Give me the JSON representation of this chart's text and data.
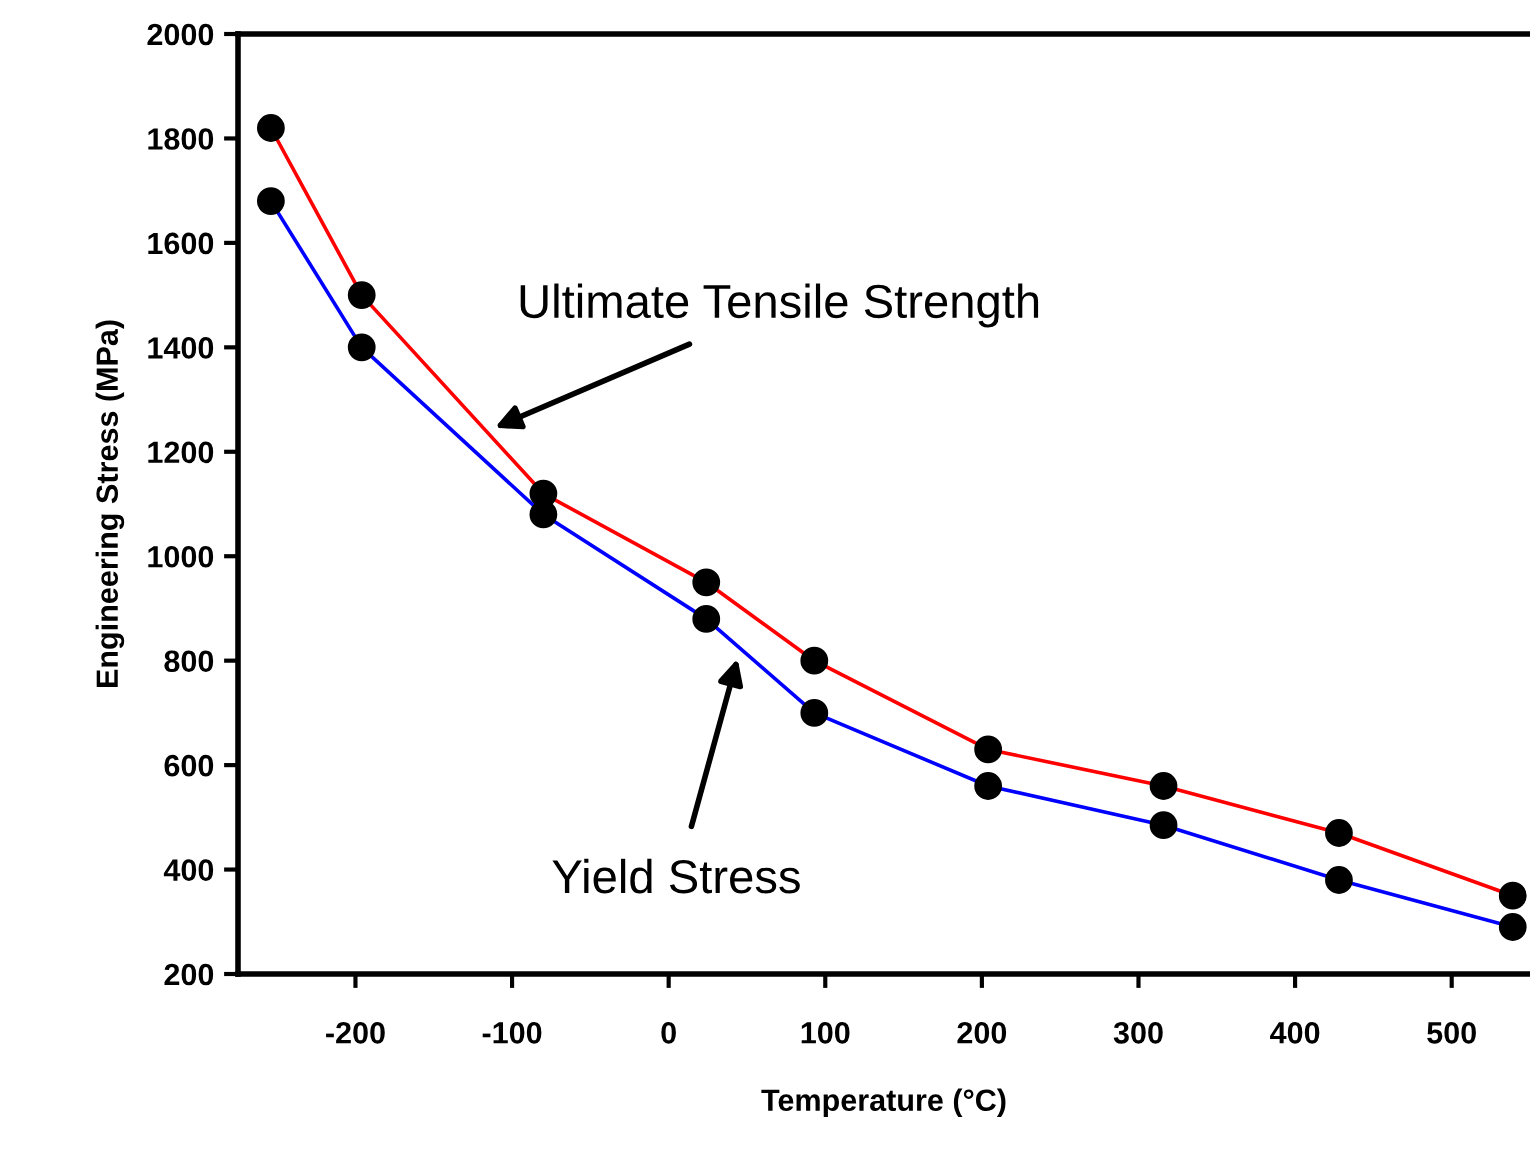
{
  "chart_data": {
    "type": "line",
    "xlabel": "Temperature (°C)",
    "ylabel": "Engineering Stress (MPa)",
    "x": [
      -254,
      -196,
      -80,
      24,
      93,
      204,
      316,
      428,
      539
    ],
    "series": [
      {
        "color": "#ff0000",
        "values": [
          1820,
          1500,
          1120,
          950,
          800,
          630,
          560,
          470,
          350
        ]
      },
      {
        "color": "#0000ff",
        "values": [
          1680,
          1400,
          1080,
          880,
          700,
          560,
          485,
          380,
          290
        ]
      }
    ],
    "xlim": [
      -275,
      550
    ],
    "xticks": [
      -200,
      -100,
      0,
      100,
      200,
      300,
      400,
      500
    ],
    "ylim": [
      200,
      2000
    ],
    "yticks": [
      200,
      400,
      600,
      800,
      1000,
      1200,
      1400,
      1600,
      1800,
      2000
    ],
    "marker": "circle",
    "line_style": "solid",
    "grid": false,
    "legend": false,
    "annotations": [
      {
        "text": "Ultimate Tensile Strength",
        "x": -111,
        "y": 1246
      },
      {
        "text": "Yield Stress",
        "x": 44,
        "y": 804
      }
    ]
  }
}
